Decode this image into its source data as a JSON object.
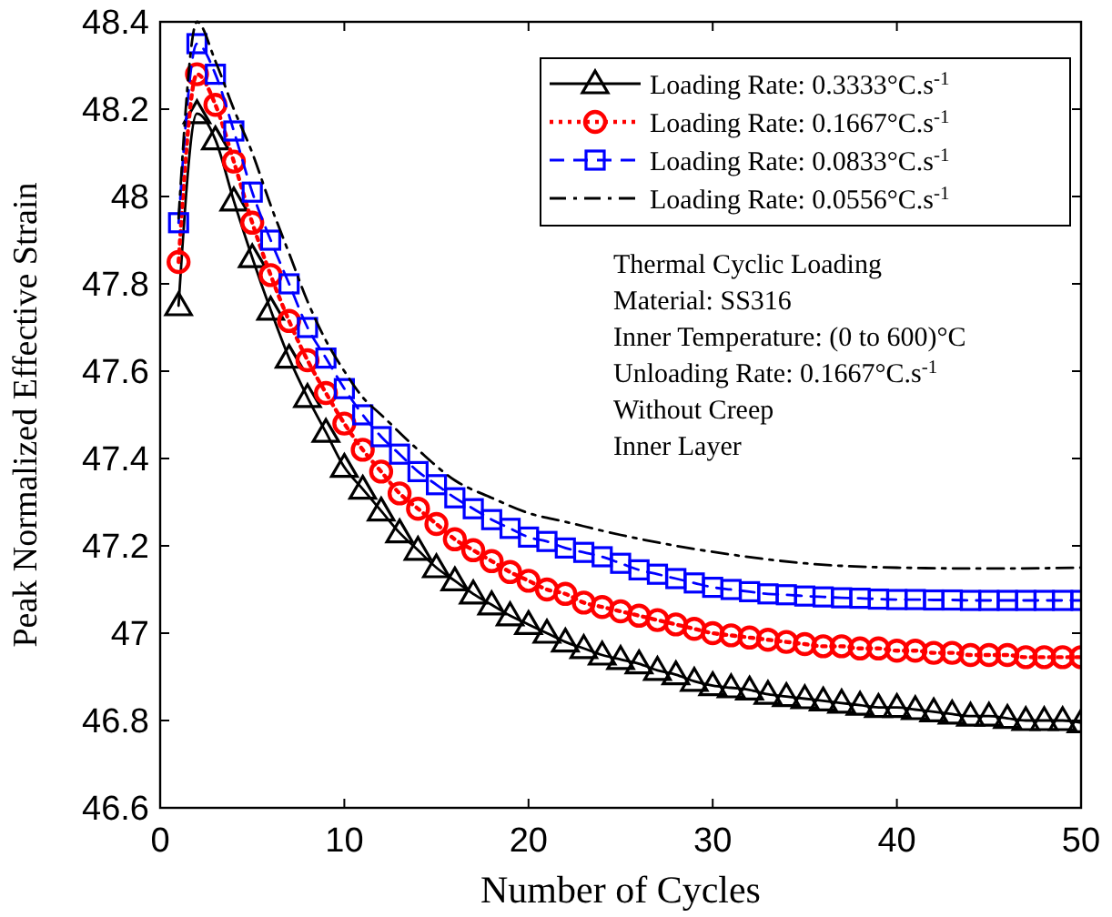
{
  "chart_data": {
    "type": "line",
    "xlabel": "Number of Cycles",
    "ylabel": "Peak Normalized Effective Strain",
    "xlim": [
      0,
      50
    ],
    "xticks": [
      0,
      10,
      20,
      30,
      40,
      50
    ],
    "ylim": [
      46.6,
      48.4
    ],
    "yticks": [
      46.6,
      46.8,
      47,
      47.2,
      47.4,
      47.6,
      47.8,
      48,
      48.2,
      48.4
    ],
    "grid": false,
    "legend": "top right",
    "annotations": [
      "Thermal Cyclic Loading",
      "Material: SS316",
      "Inner Temperature: (0 to 600)°C",
      "Unloading Rate: 0.1667°C.s$^{-1}$",
      "Without Creep",
      "Inner Layer"
    ],
    "series": [
      {
        "name": "Loading Rate: 0.3333°C.s$^{-1}$",
        "color": "#000000",
        "marker": "triangle",
        "line_style": "solid",
        "x": [
          1,
          2,
          3,
          4,
          5,
          6,
          7,
          8,
          9,
          10,
          11,
          12,
          13,
          14,
          15,
          16,
          17,
          18,
          19,
          20,
          21,
          22,
          23,
          24,
          25,
          26,
          27,
          28,
          29,
          30,
          31,
          32,
          33,
          34,
          35,
          36,
          37,
          38,
          39,
          40,
          41,
          42,
          43,
          44,
          45,
          46,
          47,
          48,
          49,
          50
        ],
        "values": [
          47.75,
          48.19,
          48.13,
          47.99,
          47.86,
          47.74,
          47.63,
          47.54,
          47.46,
          47.38,
          47.33,
          47.28,
          47.23,
          47.19,
          47.15,
          47.12,
          47.09,
          47.065,
          47.04,
          47.02,
          47.0,
          46.98,
          46.965,
          46.95,
          46.94,
          46.93,
          46.915,
          46.905,
          46.89,
          46.88,
          46.875,
          46.87,
          46.86,
          46.855,
          46.85,
          46.845,
          46.84,
          46.835,
          46.83,
          46.83,
          46.825,
          46.82,
          46.815,
          46.81,
          46.81,
          46.805,
          46.8,
          46.8,
          46.8,
          46.795
        ]
      },
      {
        "name": "Loading Rate: 0.1667°C.s$^{-1}$",
        "color": "#ff0000",
        "marker": "circle",
        "line_style": "dotted",
        "x": [
          1,
          2,
          3,
          4,
          5,
          6,
          7,
          8,
          9,
          10,
          11,
          12,
          13,
          14,
          15,
          16,
          17,
          18,
          19,
          20,
          21,
          22,
          23,
          24,
          25,
          26,
          27,
          28,
          29,
          30,
          31,
          32,
          33,
          34,
          35,
          36,
          37,
          38,
          39,
          40,
          41,
          42,
          43,
          44,
          45,
          46,
          47,
          48,
          49,
          50
        ],
        "values": [
          47.85,
          48.28,
          48.21,
          48.08,
          47.94,
          47.82,
          47.715,
          47.625,
          47.55,
          47.48,
          47.42,
          47.37,
          47.32,
          47.285,
          47.25,
          47.215,
          47.19,
          47.165,
          47.14,
          47.12,
          47.1,
          47.09,
          47.07,
          47.06,
          47.05,
          47.04,
          47.03,
          47.02,
          47.01,
          47.0,
          46.995,
          46.99,
          46.985,
          46.98,
          46.975,
          46.97,
          46.97,
          46.965,
          46.965,
          46.96,
          46.96,
          46.955,
          46.955,
          46.95,
          46.95,
          46.95,
          46.945,
          46.945,
          46.945,
          46.945
        ]
      },
      {
        "name": "Loading Rate: 0.0833°C.s$^{-1}$",
        "color": "#0000ff",
        "marker": "square",
        "line_style": "dashed",
        "x": [
          1,
          2,
          3,
          4,
          5,
          6,
          7,
          8,
          9,
          10,
          11,
          12,
          13,
          14,
          15,
          16,
          17,
          18,
          19,
          20,
          21,
          22,
          23,
          24,
          25,
          26,
          27,
          28,
          29,
          30,
          31,
          32,
          33,
          34,
          35,
          36,
          37,
          38,
          39,
          40,
          41,
          42,
          43,
          44,
          45,
          46,
          47,
          48,
          49,
          50
        ],
        "values": [
          47.94,
          48.35,
          48.28,
          48.15,
          48.01,
          47.9,
          47.8,
          47.7,
          47.63,
          47.56,
          47.5,
          47.45,
          47.41,
          47.37,
          47.34,
          47.31,
          47.285,
          47.26,
          47.24,
          47.22,
          47.21,
          47.195,
          47.185,
          47.175,
          47.16,
          47.145,
          47.135,
          47.125,
          47.115,
          47.105,
          47.1,
          47.095,
          47.09,
          47.088,
          47.085,
          47.083,
          47.081,
          47.08,
          47.078,
          47.077,
          47.077,
          47.076,
          47.076,
          47.075,
          47.075,
          47.075,
          47.075,
          47.075,
          47.075,
          47.075
        ]
      },
      {
        "name": "Loading Rate: 0.0556°C.s$^{-1}$",
        "color": "#000000",
        "marker": "none",
        "line_style": "dashdot",
        "x": [
          1,
          2,
          3,
          4,
          5,
          6,
          7,
          8,
          9,
          10,
          11,
          12,
          14,
          16,
          18,
          20,
          22,
          25,
          28,
          31,
          35,
          40,
          45,
          50
        ],
        "values": [
          47.95,
          48.4,
          48.31,
          48.2,
          48.1,
          47.98,
          47.87,
          47.76,
          47.67,
          47.6,
          47.54,
          47.5,
          47.42,
          47.35,
          47.31,
          47.275,
          47.255,
          47.225,
          47.2,
          47.18,
          47.16,
          47.15,
          47.148,
          47.15
        ]
      }
    ]
  }
}
